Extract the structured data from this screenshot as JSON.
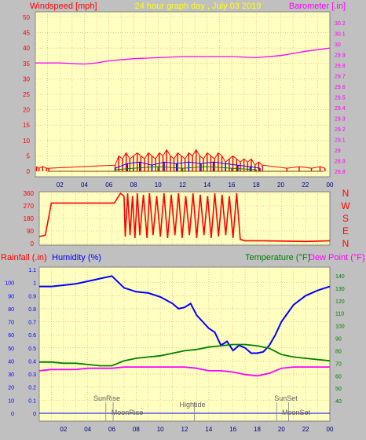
{
  "header": {
    "windspeed_label": "Windspeed [mph]",
    "title": "24 hour graph day , July 03 2019",
    "barometer_label": "Barometer [.in]"
  },
  "lower_header": {
    "rainfall_label": "Rainfall (.in)",
    "humidity_label": "Humidity (%)",
    "temperature_label": "Temperature (°F)",
    "dewpoint_label": "Dew Point (°F)"
  },
  "direction_labels": [
    "N",
    "W",
    "S",
    "E",
    "N"
  ],
  "events": [
    {
      "label": "SunRise",
      "time": 5.5
    },
    {
      "label": "MoonRise",
      "time": 6.1
    },
    {
      "label": "Hightide",
      "time": 12.8
    },
    {
      "label": "SunSet",
      "time": 19.6
    },
    {
      "label": "MoonSet",
      "time": 20.6
    }
  ],
  "colors": {
    "background": "#c0c0c0",
    "plot_bg": "#ffffc0",
    "grid": "#e0a090",
    "wind_axis": "#ff0000",
    "barometer": "#ff00ff",
    "title": "#ffff00",
    "humidity": "#0000ff",
    "temperature": "#008000",
    "dewpoint": "#ff00ff",
    "rain": "#0000ff"
  },
  "chart_data": [
    {
      "type": "line",
      "name": "wind-barometer",
      "x_ticks": [
        "02",
        "04",
        "06",
        "08",
        "10",
        "12",
        "14",
        "16",
        "18",
        "20",
        "22",
        "00"
      ],
      "wind_ylim": [
        0,
        50
      ],
      "wind_ticks": [
        0,
        5,
        10,
        15,
        20,
        25,
        30,
        35,
        40,
        45,
        50
      ],
      "baro_ylim": [
        28.8,
        30.25
      ],
      "baro_ticks": [
        "28.8",
        "28.9",
        "29",
        "29.1",
        "29.2",
        "29.3",
        "29.4",
        "29.5",
        "29.6",
        "29.7",
        "29.8",
        "29.9",
        "30",
        "30.1",
        "30.2"
      ],
      "barometer": {
        "x": [
          0,
          2,
          4,
          5,
          6,
          8,
          10,
          12,
          14,
          16,
          18,
          20,
          22,
          24
        ],
        "y": [
          29.82,
          29.82,
          29.81,
          29.82,
          29.84,
          29.86,
          29.87,
          29.88,
          29.88,
          29.88,
          29.87,
          29.89,
          29.93,
          29.96
        ]
      },
      "wind_gust": {
        "x": [
          0.1,
          0.3,
          0.6,
          0.9,
          1.1,
          6.5,
          6.8,
          7.1,
          7.4,
          7.7,
          8.0,
          8.3,
          8.6,
          8.9,
          9.2,
          9.5,
          9.8,
          10.1,
          10.4,
          10.7,
          11.0,
          11.3,
          11.6,
          11.9,
          12.2,
          12.5,
          12.8,
          13.1,
          13.4,
          13.7,
          14.0,
          14.3,
          14.6,
          14.9,
          15.2,
          15.5,
          15.8,
          16.1,
          16.4,
          16.7,
          17.0,
          17.3,
          17.6,
          17.9,
          18.2,
          18.5,
          20.5,
          21.5,
          22.5,
          23.2,
          23.6
        ],
        "y": [
          1.5,
          1,
          1.5,
          1,
          1,
          2,
          5,
          4,
          6,
          4,
          5,
          6,
          5,
          4,
          6,
          5,
          4,
          6,
          5,
          7,
          5,
          4,
          6,
          5,
          4,
          6,
          5,
          7,
          5,
          4,
          6,
          5,
          4,
          6,
          5,
          3,
          4,
          5,
          4,
          3,
          4,
          3,
          4,
          2,
          3,
          2,
          1,
          1.5,
          1,
          1.5,
          1
        ]
      },
      "wind_avg": {
        "x": [
          6.5,
          7.5,
          8.5,
          9.5,
          10.5,
          11.5,
          12.5,
          13.5,
          14.5,
          15.5,
          16.5,
          17.5,
          18.3
        ],
        "y": [
          1,
          2.5,
          3,
          2,
          3,
          2.5,
          3,
          2.5,
          3,
          2.5,
          2,
          1.5,
          1
        ]
      },
      "wind_min": {
        "x": [
          6.5,
          8,
          10,
          12,
          14,
          16,
          18
        ],
        "y": [
          0.5,
          1,
          1.5,
          1,
          1.5,
          1,
          0.5
        ]
      }
    },
    {
      "type": "line",
      "name": "wind-direction",
      "ylim": [
        0,
        360
      ],
      "y_ticks": [
        0,
        90,
        180,
        270,
        360
      ],
      "direction": {
        "x": [
          0,
          0.5,
          1,
          6.2,
          6.7,
          7.0,
          7.1,
          7.3,
          7.5,
          7.7,
          7.9,
          8.1,
          8.3,
          8.6,
          8.9,
          9.1,
          9.4,
          9.7,
          10.0,
          10.3,
          10.6,
          10.9,
          11.2,
          11.5,
          11.8,
          12.1,
          12.4,
          12.7,
          13.0,
          13.3,
          13.6,
          13.9,
          14.2,
          14.5,
          14.8,
          15.1,
          15.4,
          15.7,
          16.0,
          16.3,
          16.6,
          17.0,
          18.5,
          22.0,
          24.0
        ],
        "y": [
          50,
          60,
          290,
          290,
          360,
          340,
          50,
          360,
          60,
          340,
          40,
          360,
          60,
          350,
          40,
          360,
          60,
          340,
          50,
          360,
          40,
          350,
          60,
          360,
          40,
          340,
          60,
          360,
          40,
          350,
          60,
          340,
          40,
          360,
          50,
          350,
          60,
          340,
          40,
          360,
          30,
          20,
          20,
          15,
          20
        ]
      }
    },
    {
      "type": "line",
      "name": "humidity-temperature",
      "humidity_ylim": [
        0,
        110
      ],
      "humidity_ticks": [
        0,
        10,
        20,
        30,
        40,
        50,
        60,
        70,
        80,
        90,
        100
      ],
      "rain_ylim": [
        0,
        1.1
      ],
      "rain_ticks": [
        "0",
        "0.1",
        "0.2",
        "0.3",
        "0.4",
        "0.5",
        "0.6",
        "0.7",
        "0.8",
        "0.9",
        "1",
        "1.1"
      ],
      "temp_ylim": [
        30,
        145
      ],
      "temp_ticks": [
        40,
        50,
        60,
        70,
        80,
        90,
        100,
        110,
        120,
        130,
        140
      ],
      "humidity": {
        "x": [
          0,
          1,
          2,
          3,
          4,
          5,
          6,
          7,
          8,
          9,
          10,
          11,
          11.5,
          12,
          12.5,
          13,
          13.5,
          14,
          14.5,
          15,
          15.5,
          16,
          16.5,
          17,
          17.5,
          18,
          18.5,
          19,
          19.5,
          20,
          21,
          22,
          23,
          24
        ],
        "y": [
          97,
          97,
          98,
          99,
          101,
          103,
          105,
          96,
          93,
          92,
          89,
          84,
          80,
          81,
          84,
          75,
          70,
          65,
          62,
          52,
          55,
          48,
          52,
          50,
          46,
          46,
          47,
          52,
          60,
          70,
          83,
          90,
          94,
          97
        ]
      },
      "temperature": {
        "x": [
          0,
          1,
          2,
          3,
          4,
          5,
          6,
          7,
          8,
          9,
          10,
          11,
          12,
          13,
          14,
          15,
          16,
          17,
          18,
          19,
          20,
          21,
          22,
          23,
          24
        ],
        "y": [
          71,
          71,
          70,
          70,
          69,
          68,
          68,
          72,
          74,
          75,
          76,
          78,
          80,
          81,
          83,
          84,
          85,
          85,
          84,
          82,
          77,
          75,
          74,
          73,
          72
        ]
      },
      "dewpoint": {
        "x": [
          0,
          1,
          2,
          3,
          4,
          5,
          6,
          7,
          8,
          9,
          10,
          11,
          12,
          13,
          14,
          15,
          16,
          17,
          18,
          19,
          20,
          21,
          22,
          23,
          24
        ],
        "y": [
          64,
          65,
          65,
          65,
          66,
          66,
          66,
          67,
          67,
          67,
          67,
          67,
          67,
          66,
          64,
          64,
          63,
          61,
          60,
          62,
          66,
          67,
          67,
          67,
          67
        ]
      },
      "rain": {
        "x": [
          0,
          24
        ],
        "y": [
          0,
          0
        ]
      }
    }
  ]
}
